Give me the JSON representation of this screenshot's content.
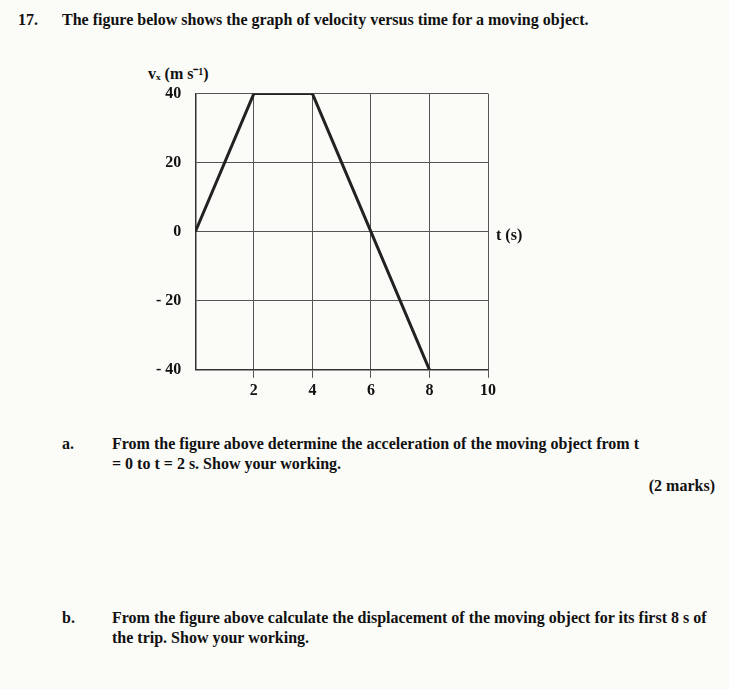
{
  "question": {
    "number": "17.",
    "text": "The figure below shows the graph of velocity versus time for a moving object."
  },
  "chart_data": {
    "type": "line",
    "x_label": "t (s)",
    "y_label": "vₓ (m s⁻¹)",
    "x": [
      0,
      2,
      4,
      8
    ],
    "values": [
      0,
      40,
      40,
      -40
    ],
    "color": "#222222",
    "xlim": [
      0,
      10
    ],
    "xticks": [
      2,
      4,
      6,
      8,
      10
    ],
    "ylim": [
      -40,
      40
    ],
    "yticks": [
      {
        "value": -40,
        "label": "- 40"
      },
      {
        "value": -20,
        "label": "- 20"
      },
      0,
      20,
      40
    ],
    "grid": true
  },
  "parts": [
    {
      "label": "a.",
      "text": "From the figure above determine the acceleration of the moving object from t = 0 to t = 2 s. Show your working.",
      "marks": "(2 marks)"
    },
    {
      "label": "b.",
      "text": "From the figure above calculate the displacement of the moving object for its first 8 s of the trip. Show your working."
    }
  ]
}
